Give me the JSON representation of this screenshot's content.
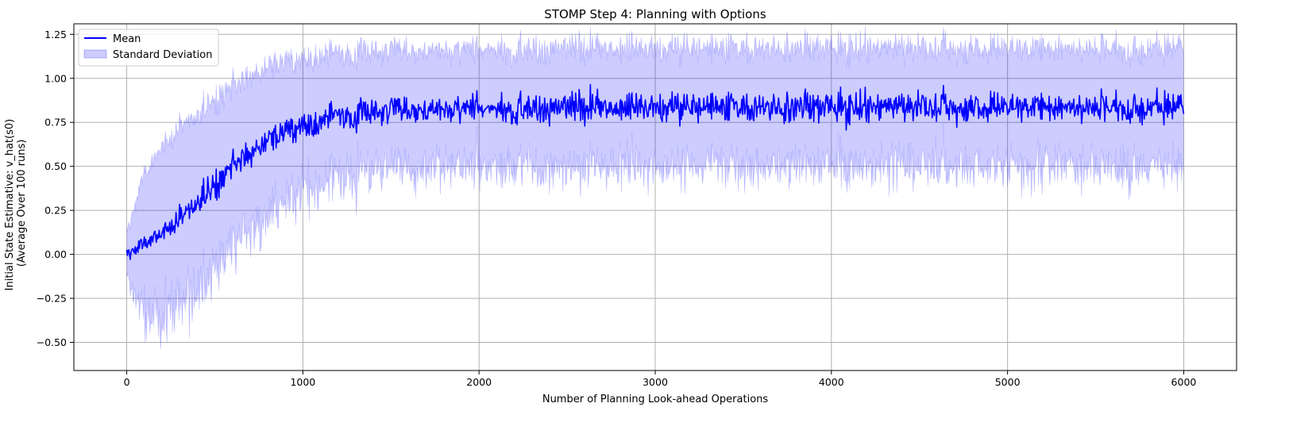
{
  "chart_data": {
    "type": "line",
    "title": "STOMP Step 4: Planning with Options",
    "xlabel": "Number of Planning Look-ahead Operations",
    "ylabel_lines": [
      "Initial State Estimative: v_hat(s0)",
      "(Average Over 100 runs)"
    ],
    "xlim": [
      -300,
      6300
    ],
    "ylim": [
      -0.66,
      1.31
    ],
    "xticks": [
      0,
      1000,
      2000,
      3000,
      4000,
      5000,
      6000
    ],
    "xtick_labels": [
      "0",
      "1000",
      "2000",
      "3000",
      "4000",
      "5000",
      "6000"
    ],
    "yticks": [
      -0.5,
      -0.25,
      0.0,
      0.25,
      0.5,
      0.75,
      1.0,
      1.25
    ],
    "ytick_labels": [
      "−0.50",
      "−0.25",
      "0.00",
      "0.25",
      "0.50",
      "0.75",
      "1.00",
      "1.25"
    ],
    "grid": true,
    "legend_position": "top-left",
    "series": [
      {
        "name": "Mean",
        "kind": "line",
        "color": "#0000ff",
        "x": [
          0,
          100,
          200,
          300,
          400,
          500,
          600,
          700,
          800,
          900,
          1000,
          1100,
          1200,
          1300,
          1400,
          1500,
          1600,
          1700,
          1800,
          2000,
          2500,
          3000,
          3500,
          4000,
          4500,
          5000,
          5500,
          6000
        ],
        "y": [
          0.0,
          0.06,
          0.11,
          0.2,
          0.3,
          0.4,
          0.5,
          0.58,
          0.64,
          0.69,
          0.72,
          0.75,
          0.78,
          0.8,
          0.81,
          0.82,
          0.82,
          0.83,
          0.83,
          0.83,
          0.84,
          0.84,
          0.84,
          0.84,
          0.84,
          0.84,
          0.84,
          0.84
        ]
      },
      {
        "name": "Standard Deviation",
        "kind": "band",
        "color": "#0000ff",
        "x": [
          0,
          100,
          200,
          300,
          400,
          500,
          600,
          700,
          800,
          900,
          1000,
          1100,
          1200,
          1300,
          1400,
          1500,
          1600,
          1700,
          1800,
          2000,
          2500,
          3000,
          3500,
          4000,
          4500,
          5000,
          5500,
          6000
        ],
        "upper": [
          0.12,
          0.45,
          0.58,
          0.7,
          0.8,
          0.88,
          0.95,
          1.0,
          1.04,
          1.07,
          1.09,
          1.11,
          1.12,
          1.13,
          1.14,
          1.15,
          1.15,
          1.16,
          1.16,
          1.17,
          1.17,
          1.17,
          1.17,
          1.17,
          1.17,
          1.17,
          1.17,
          1.17
        ],
        "lower": [
          -0.12,
          -0.35,
          -0.4,
          -0.33,
          -0.2,
          -0.08,
          0.04,
          0.13,
          0.21,
          0.28,
          0.33,
          0.37,
          0.41,
          0.43,
          0.45,
          0.47,
          0.48,
          0.49,
          0.49,
          0.5,
          0.5,
          0.5,
          0.5,
          0.5,
          0.5,
          0.5,
          0.5,
          0.5
        ]
      }
    ]
  }
}
